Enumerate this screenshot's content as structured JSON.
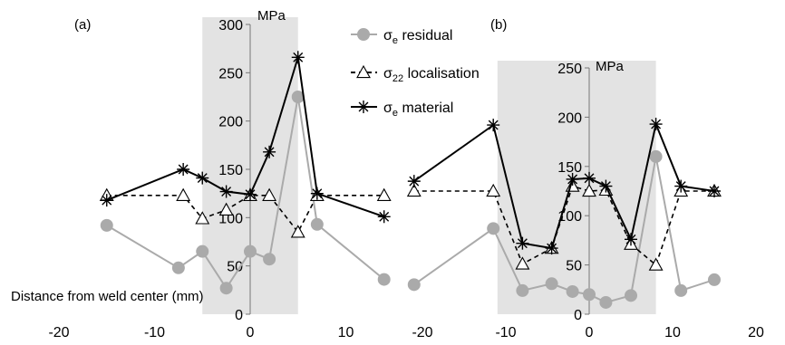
{
  "chart_data": [
    {
      "type": "line",
      "panel_label": "(a)",
      "x_unit_label": "",
      "y_unit": "MPa",
      "xlabel": "Distance from weld center (mm)",
      "xlim": [
        -20,
        14
      ],
      "ylim": [
        0,
        300
      ],
      "x_ticks": [
        -20,
        -10,
        0,
        10
      ],
      "y_ticks": [
        0,
        50,
        100,
        150,
        200,
        250,
        300
      ],
      "shaded_region": [
        -5,
        5
      ],
      "series": [
        {
          "name": "σe residual",
          "marker": "circle",
          "style": "solid",
          "color": "#aaaaaa",
          "x": [
            -15,
            -7.5,
            -5,
            -2.5,
            0,
            2,
            5,
            7,
            14
          ],
          "y": [
            92,
            48,
            65,
            27,
            65,
            57,
            225,
            93,
            36
          ]
        },
        {
          "name": "σ22 localisation",
          "marker": "triangle",
          "style": "dashed",
          "color": "#000000",
          "x": [
            -15,
            -7,
            -5,
            -2.5,
            0,
            2,
            5,
            7,
            14
          ],
          "y": [
            123,
            123,
            99,
            108,
            123,
            123,
            85,
            123,
            123
          ]
        },
        {
          "name": "σe material",
          "marker": "star",
          "style": "solid",
          "color": "#000000",
          "x": [
            -15,
            -7,
            -5,
            -2.5,
            0,
            2,
            5,
            7,
            14
          ],
          "y": [
            118,
            150,
            141,
            127,
            124,
            168,
            266,
            125,
            101
          ]
        }
      ]
    },
    {
      "type": "line",
      "panel_label": "(b)",
      "y_unit": "MPa",
      "xlim": [
        -20,
        20
      ],
      "ylim": [
        0,
        250
      ],
      "x_ticks": [
        -20,
        -10,
        0,
        10,
        20
      ],
      "y_ticks": [
        0,
        50,
        100,
        150,
        200,
        250
      ],
      "shaded_region": [
        -11,
        8
      ],
      "series": [
        {
          "name": "σe residual",
          "marker": "circle",
          "style": "solid",
          "color": "#aaaaaa",
          "x": [
            -21,
            -11.5,
            -8,
            -4.5,
            -2,
            0,
            2,
            5,
            8,
            11,
            15
          ],
          "y": [
            30,
            87,
            24,
            31,
            23,
            20,
            12,
            19,
            160,
            24,
            35
          ]
        },
        {
          "name": "σ22 localisation",
          "marker": "triangle",
          "style": "dashed",
          "color": "#000000",
          "x": [
            -21,
            -11.5,
            -8,
            -4.5,
            -2,
            0,
            2,
            5,
            8,
            11,
            15
          ],
          "y": [
            125,
            125,
            51,
            67,
            130,
            125,
            126,
            71,
            50,
            125,
            125
          ]
        },
        {
          "name": "σe material",
          "marker": "star",
          "style": "solid",
          "color": "#000000",
          "x": [
            -21,
            -11.5,
            -8,
            -4.5,
            -2,
            0,
            2,
            5,
            8,
            11,
            15
          ],
          "y": [
            135,
            192,
            72,
            67,
            137,
            138,
            130,
            76,
            193,
            130,
            125
          ]
        }
      ]
    }
  ],
  "legend": {
    "placement": "top-center",
    "items": [
      {
        "base": "σ",
        "sub": "e",
        "rest": " residual"
      },
      {
        "base": "σ",
        "sub": "22",
        "rest": " localisation"
      },
      {
        "base": "σ",
        "sub": "e",
        "rest": " material"
      }
    ]
  }
}
